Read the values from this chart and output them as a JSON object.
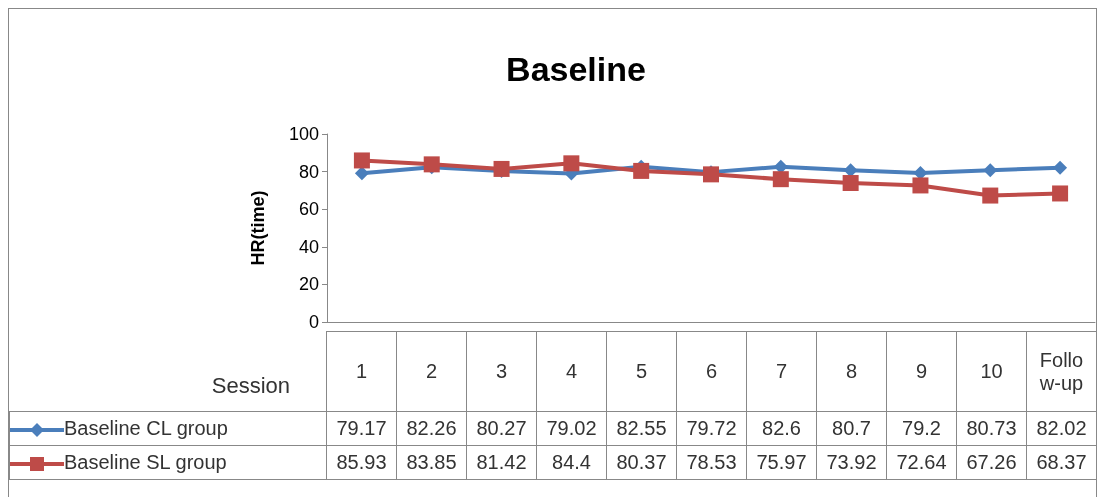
{
  "chart_data": {
    "type": "line",
    "title": "Baseline",
    "ylabel": "HR(time)",
    "xlabel": "Session",
    "categories": [
      "1",
      "2",
      "3",
      "4",
      "5",
      "6",
      "7",
      "8",
      "9",
      "10",
      "Follo w-up"
    ],
    "series": [
      {
        "name": "Baseline CL group",
        "color": "#4a7ebb",
        "marker": "diamond",
        "values": [
          79.17,
          82.26,
          80.27,
          79.02,
          82.55,
          79.72,
          82.6,
          80.7,
          79.2,
          80.73,
          82.02
        ]
      },
      {
        "name": "Baseline SL group",
        "color": "#be4b48",
        "marker": "square",
        "values": [
          85.93,
          83.85,
          81.42,
          84.4,
          80.37,
          78.53,
          75.97,
          73.92,
          72.64,
          67.26,
          68.37
        ]
      }
    ],
    "ylim": [
      0,
      100
    ],
    "yticks": [
      0,
      20,
      40,
      60,
      80,
      100
    ],
    "grid": false,
    "data_labels": true,
    "legend": "bottom"
  }
}
